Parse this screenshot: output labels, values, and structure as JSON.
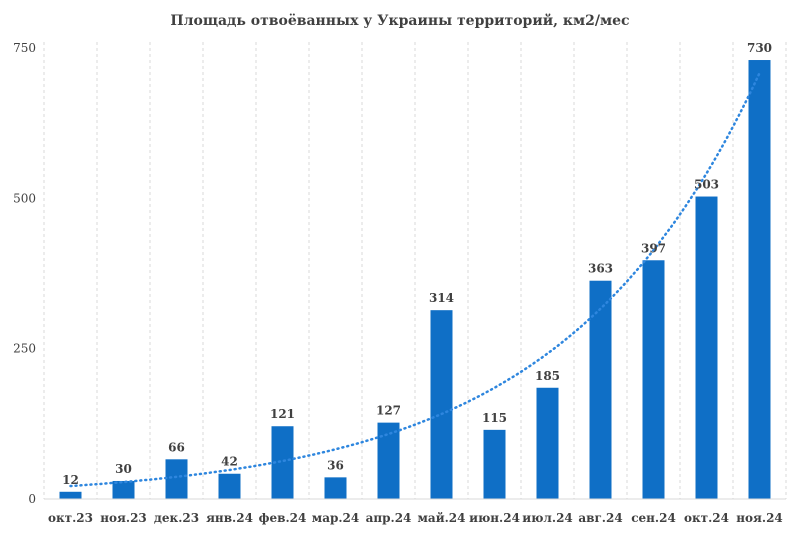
{
  "chart_data": {
    "type": "bar",
    "title": "Площадь отвоёванных у Украины территорий, км2/мес",
    "xlabel": "",
    "ylabel": "",
    "categories": [
      "окт.23",
      "ноя.23",
      "дек.23",
      "янв.24",
      "фев.24",
      "мар.24",
      "апр.24",
      "май.24",
      "июн.24",
      "июл.24",
      "авг.24",
      "сен.24",
      "окт.24",
      "ноя.24"
    ],
    "values": [
      12,
      30,
      66,
      42,
      121,
      36,
      127,
      314,
      115,
      185,
      363,
      397,
      503,
      730
    ],
    "ylim": [
      0,
      750
    ],
    "yticks": [
      0,
      250,
      500,
      750
    ],
    "ytick_labels": [
      "0",
      "250",
      "500",
      "750"
    ],
    "grid": "vertical dashed",
    "trendline": {
      "type": "exponential",
      "style": "dotted"
    },
    "colors": {
      "bar": "#0F6FC6",
      "trend": "#2E86DE",
      "grid": "#D9D9D9",
      "text": "#404040"
    }
  }
}
